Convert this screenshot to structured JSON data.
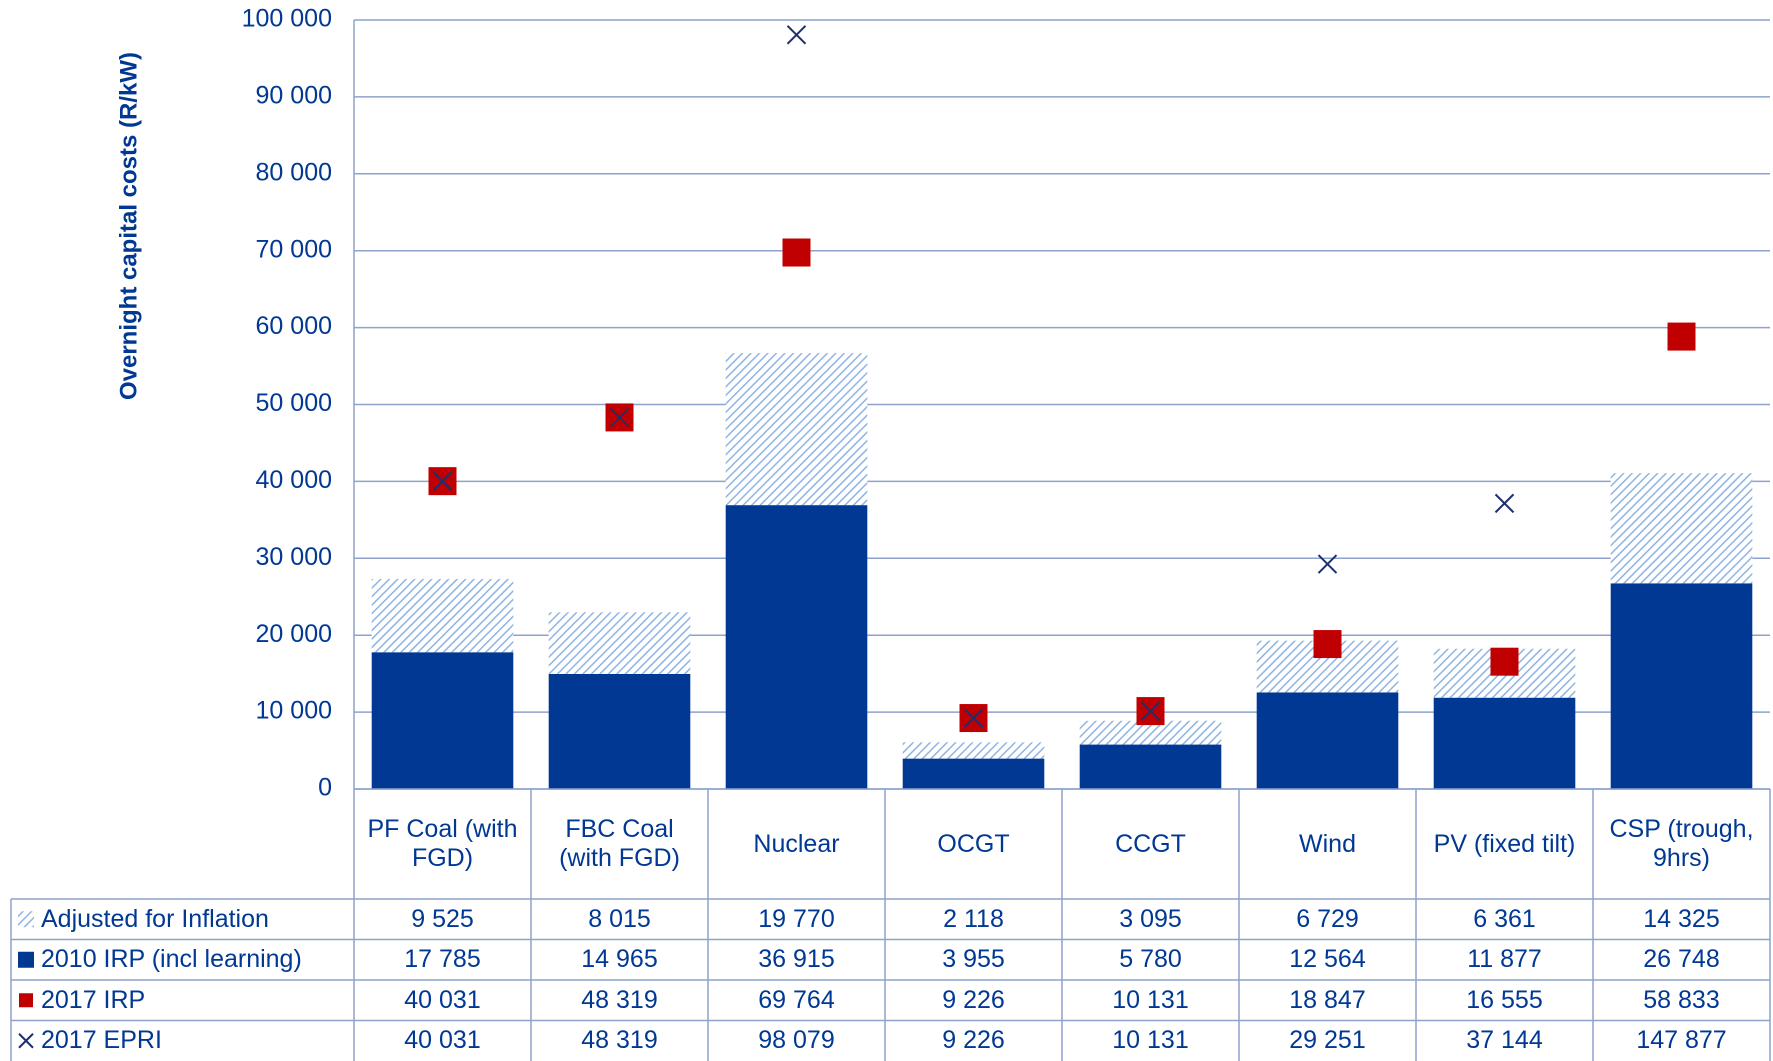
{
  "chart_data": {
    "type": "bar",
    "y_label": "Overnight capital costs (R/kW)",
    "categories": [
      "PF Coal (with FGD)",
      "FBC Coal (with FGD)",
      "Nuclear",
      "OCGT",
      "CCGT",
      "Wind",
      "PV (fixed tilt)",
      "CSP (trough, 9hrs)"
    ],
    "series": [
      {
        "name": "Adjusted for Inflation",
        "kind": "bar",
        "fill": "hatch",
        "color": "#8fb4e3",
        "values": [
          9525,
          8015,
          19770,
          2118,
          3095,
          6729,
          6361,
          14325
        ],
        "value_labels": [
          "9 525",
          "8 015",
          "19 770",
          "2 118",
          "3 095",
          "6 729",
          "6 361",
          "14 325"
        ]
      },
      {
        "name": "2010 IRP (incl learning)",
        "kind": "bar",
        "fill": "solid",
        "color": "#003893",
        "values": [
          17785,
          14965,
          36915,
          3955,
          5780,
          12564,
          11877,
          26748
        ],
        "value_labels": [
          "17 785",
          "14 965",
          "36 915",
          "3 955",
          "5 780",
          "12 564",
          "11 877",
          "26 748"
        ]
      },
      {
        "name": "2017 IRP",
        "kind": "marker",
        "marker": "square",
        "color": "#c00000",
        "values": [
          40031,
          48319,
          69764,
          9226,
          10131,
          18847,
          16555,
          58833
        ],
        "value_labels": [
          "40 031",
          "48 319",
          "69 764",
          "9 226",
          "10 131",
          "18 847",
          "16 555",
          "58 833"
        ]
      },
      {
        "name": "2017 EPRI",
        "kind": "marker",
        "marker": "x",
        "color": "#1f2f6e",
        "values": [
          40031,
          48319,
          98079,
          9226,
          10131,
          29251,
          37144,
          147877
        ],
        "value_labels": [
          "40 031",
          "48 319",
          "98 079",
          "9 226",
          "10 131",
          "29 251",
          "37 144",
          "147 877"
        ]
      }
    ],
    "ylim": [
      0,
      100000
    ],
    "yticks": [
      0,
      {
        "value": 10000,
        "label": "10 000"
      },
      {
        "value": 20000,
        "label": "20 000"
      },
      {
        "value": 30000,
        "label": "30 000"
      },
      {
        "value": 40000,
        "label": "40 000"
      },
      {
        "value": 50000,
        "label": "50 000"
      },
      {
        "value": 60000,
        "label": "60 000"
      },
      {
        "value": 70000,
        "label": "70 000"
      },
      {
        "value": 80000,
        "label": "80 000"
      },
      {
        "value": 90000,
        "label": "90 000"
      },
      {
        "value": 100000,
        "label": "100 000"
      }
    ],
    "grid": true,
    "data_table": true
  }
}
